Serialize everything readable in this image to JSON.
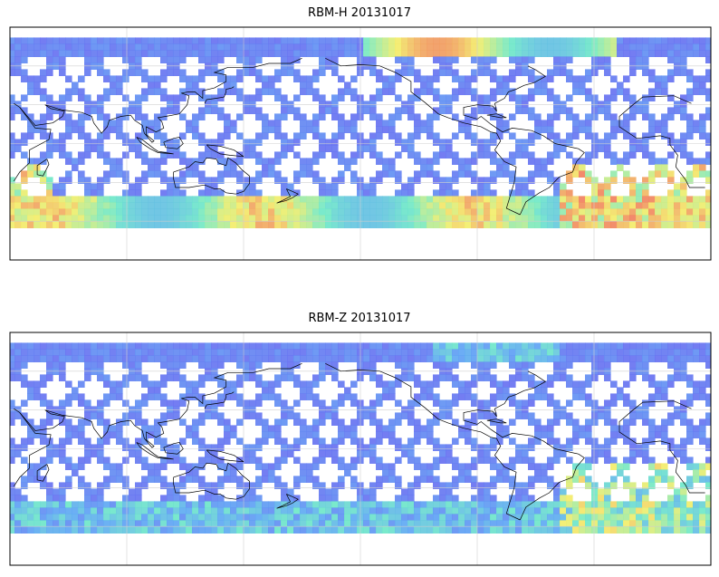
{
  "panels": [
    {
      "title": "RBM-H 20131017",
      "variable": "RBM-H",
      "date": "20131017"
    },
    {
      "title": "RBM-Z 20131017",
      "variable": "RBM-Z",
      "date": "20131017"
    }
  ],
  "map": {
    "projection": "equirectangular",
    "gridlines": true,
    "coastlines": true,
    "colormap": "jet",
    "pattern": "satellite swath crossing tracks",
    "colors": {
      "low": "#6a64f0",
      "mid_low": "#5fa7f4",
      "mid": "#6fe8c8",
      "mid_high": "#f3ee6a",
      "high": "#f0645c",
      "coast": "#000000",
      "grid": "#d0d0d0"
    }
  }
}
